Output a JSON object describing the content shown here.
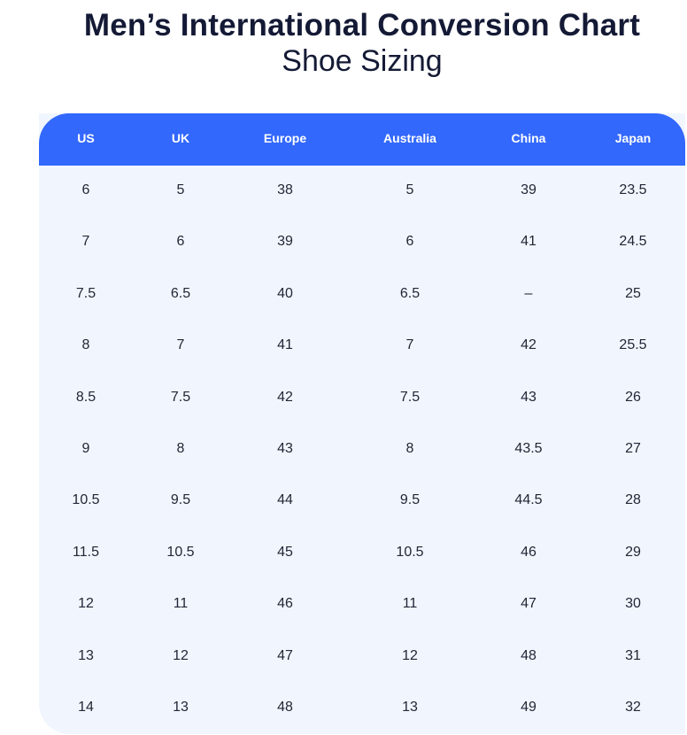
{
  "page": {
    "title": "Men’s International Conversion Chart",
    "subtitle": "Shoe Sizing"
  },
  "table": {
    "headers": [
      "US",
      "UK",
      "Europe",
      "Australia",
      "China",
      "Japan"
    ],
    "rows": [
      [
        "6",
        "5",
        "38",
        "5",
        "39",
        "23.5"
      ],
      [
        "7",
        "6",
        "39",
        "6",
        "41",
        "24.5"
      ],
      [
        "7.5",
        "6.5",
        "40",
        "6.5",
        "–",
        "25"
      ],
      [
        "8",
        "7",
        "41",
        "7",
        "42",
        "25.5"
      ],
      [
        "8.5",
        "7.5",
        "42",
        "7.5",
        "43",
        "26"
      ],
      [
        "9",
        "8",
        "43",
        "8",
        "43.5",
        "27"
      ],
      [
        "10.5",
        "9.5",
        "44",
        "9.5",
        "44.5",
        "28"
      ],
      [
        "11.5",
        "10.5",
        "45",
        "10.5",
        "46",
        "29"
      ],
      [
        "12",
        "11",
        "46",
        "11",
        "47",
        "30"
      ],
      [
        "13",
        "12",
        "47",
        "12",
        "48",
        "31"
      ],
      [
        "14",
        "13",
        "48",
        "13",
        "49",
        "32"
      ]
    ]
  },
  "colors": {
    "header_bg": "#3368fd",
    "body_bg": "#f1f6fe",
    "title_text": "#141a35"
  }
}
